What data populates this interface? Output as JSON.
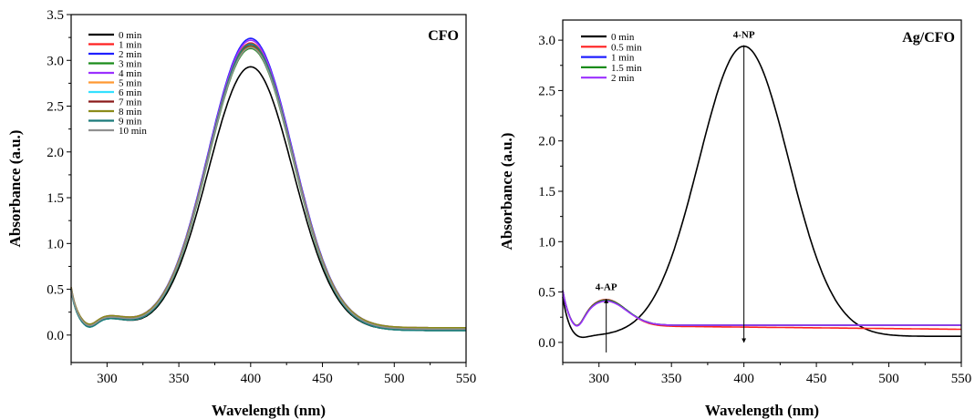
{
  "chart_data": [
    {
      "type": "line",
      "panel_label": "CFO",
      "xlabel": "Wavelength (nm)",
      "ylabel": "Absorbance (a.u.)",
      "xlim": [
        275,
        550
      ],
      "ylim": [
        -0.3,
        3.5
      ],
      "xticks": [
        300,
        350,
        400,
        450,
        500,
        550
      ],
      "yticks": [
        0.0,
        0.5,
        1.0,
        1.5,
        2.0,
        2.5,
        3.0,
        3.5
      ],
      "ytick_labels": [
        "0.0",
        "0.5",
        "1.0",
        "1.5",
        "2.0",
        "2.5",
        "3.0",
        "3.5"
      ],
      "legend_position": "top-left",
      "series": [
        {
          "name": "0 min",
          "color": "#000000",
          "peak": 2.93
        },
        {
          "name": "1 min",
          "color": "#ff2020",
          "peak": 3.19
        },
        {
          "name": "2 min",
          "color": "#2020ff",
          "peak": 3.24
        },
        {
          "name": "3 min",
          "color": "#1a8c1a",
          "peak": 3.13
        },
        {
          "name": "4 min",
          "color": "#9b30ff",
          "peak": 3.22
        },
        {
          "name": "5 min",
          "color": "#ff9933",
          "peak": 3.18
        },
        {
          "name": "6 min",
          "color": "#33e0ff",
          "peak": 3.17
        },
        {
          "name": "7 min",
          "color": "#8b1a1a",
          "peak": 3.16
        },
        {
          "name": "8 min",
          "color": "#8b8b1a",
          "peak": 3.15
        },
        {
          "name": "9 min",
          "color": "#1a7a7a",
          "peak": 3.18
        },
        {
          "name": "10 min",
          "color": "#909090",
          "peak": 3.14
        }
      ]
    },
    {
      "type": "line",
      "panel_label": "Ag/CFO",
      "xlabel": "Wavelength (nm)",
      "ylabel": "Absorbance (a.u.)",
      "xlim": [
        275,
        550
      ],
      "ylim": [
        -0.2,
        3.2
      ],
      "xticks": [
        300,
        350,
        400,
        450,
        500,
        550
      ],
      "yticks": [
        0.0,
        0.5,
        1.0,
        1.5,
        2.0,
        2.5,
        3.0
      ],
      "ytick_labels": [
        "0.0",
        "0.5",
        "1.0",
        "1.5",
        "2.0",
        "2.5",
        "3.0"
      ],
      "legend_position": "top-left",
      "annotations": [
        {
          "text": "4-NP",
          "x": 400,
          "y_from": 2.95,
          "y_to": 0.0
        },
        {
          "text": "4-AP",
          "x": 305,
          "y_from": -0.1,
          "y_to": 0.43
        }
      ],
      "series": [
        {
          "name": "0 min",
          "color": "#000000",
          "peak_nm": 400,
          "peak": 2.93
        },
        {
          "name": "0.5 min",
          "color": "#ff2020",
          "peak_nm": 305,
          "peak": 0.42
        },
        {
          "name": "1 min",
          "color": "#2020ff",
          "peak_nm": 305,
          "peak": 0.41
        },
        {
          "name": "1.5 min",
          "color": "#1a8c1a",
          "peak_nm": 305,
          "peak": 0.41
        },
        {
          "name": "2 min",
          "color": "#9b30ff",
          "peak_nm": 305,
          "peak": 0.4
        }
      ]
    }
  ]
}
